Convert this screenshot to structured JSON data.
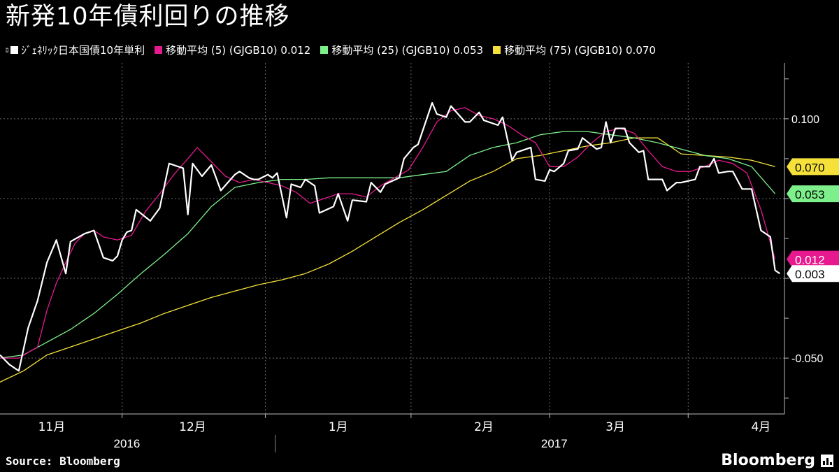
{
  "title": "新発10年債利回りの推移",
  "legend": {
    "generic_prefix": "ﾛ",
    "generic": "ｼﾞｪﾈﾘｯｸ日本国債10年単利",
    "ma5": "移動平均 (5) (GJGB10) 0.012",
    "ma25": "移動平均 (25) (GJGB10) 0.053",
    "ma75": "移動平均 (75) (GJGB10) 0.070"
  },
  "source": "Source:  Bloomberg",
  "brand": "Bloomberg",
  "colors": {
    "background": "#000000",
    "yield": "#ffffff",
    "ma5": "#e6198f",
    "ma25": "#7ef08b",
    "ma75": "#f5e13a",
    "grid": "#6a6a6a"
  },
  "chart_data": {
    "type": "line",
    "title": "新発10年債利回りの推移",
    "xlabel": "",
    "ylabel": "",
    "ylim": [
      -0.085,
      0.135
    ],
    "grid": true,
    "legend_position": "top",
    "y_ticks": [
      {
        "value": 0.1,
        "label": "0.100"
      },
      {
        "value": 0.05,
        "label": ""
      },
      {
        "value": 0.0,
        "label": ""
      },
      {
        "value": -0.05,
        "label": "-0.050"
      }
    ],
    "x_month_labels": [
      {
        "day": 11,
        "label": "11月"
      },
      {
        "day": 41,
        "label": "12月"
      },
      {
        "day": 72,
        "label": "1月"
      },
      {
        "day": 103,
        "label": "2月"
      },
      {
        "day": 131,
        "label": "3月"
      },
      {
        "day": 162,
        "label": "4月"
      }
    ],
    "x_year_labels": [
      {
        "day": 27,
        "label": "2016"
      },
      {
        "day": 118,
        "label": "2017"
      }
    ],
    "x_range_days": [
      0,
      167
    ],
    "x_start_date": "2016-10-21",
    "end_labels": [
      {
        "series": "ma75",
        "label": "0.070"
      },
      {
        "series": "ma25",
        "label": "0.053"
      },
      {
        "series": "ma5",
        "label": "0.012"
      },
      {
        "series": "yield",
        "label": "0.003"
      }
    ],
    "series": [
      {
        "name": "ｼﾞｪﾈﾘｯｸ日本国債10年単利",
        "key": "yield",
        "x": [
          0,
          2,
          4,
          6,
          8,
          10,
          12,
          14,
          15,
          18,
          19,
          20,
          22,
          24,
          25,
          26,
          27,
          28,
          29,
          32,
          34,
          36,
          39,
          40,
          41,
          43,
          45,
          46,
          47,
          50,
          51,
          53,
          54,
          55,
          57,
          58,
          59,
          61,
          62,
          64,
          65,
          67,
          68,
          71,
          72,
          74,
          75,
          78,
          79,
          81,
          82,
          85,
          86,
          88,
          89,
          92,
          93,
          95,
          96,
          99,
          100,
          102,
          103,
          106,
          107,
          109,
          110,
          113,
          114,
          116,
          117,
          118,
          120,
          121,
          123,
          124,
          127,
          128,
          129,
          130,
          131,
          133,
          134,
          136,
          137,
          138,
          141,
          142,
          144,
          145,
          148,
          149,
          151,
          152,
          153,
          155,
          156,
          158,
          160,
          162,
          164,
          165,
          166
        ],
        "y": [
          -0.048,
          -0.054,
          -0.058,
          -0.031,
          -0.014,
          0.01,
          0.024,
          0.003,
          0.023,
          0.028,
          0.029,
          0.03,
          0.013,
          0.011,
          0.014,
          0.024,
          0.029,
          0.03,
          0.043,
          0.036,
          0.044,
          0.072,
          0.069,
          0.04,
          0.072,
          0.064,
          0.071,
          0.063,
          0.055,
          0.065,
          0.067,
          0.063,
          0.062,
          0.062,
          0.065,
          0.063,
          0.066,
          0.038,
          0.059,
          0.057,
          0.062,
          0.058,
          0.041,
          0.045,
          0.053,
          0.036,
          0.049,
          0.048,
          0.06,
          0.054,
          0.059,
          0.063,
          0.075,
          0.082,
          0.084,
          0.11,
          0.103,
          0.101,
          0.108,
          0.098,
          0.098,
          0.104,
          0.099,
          0.096,
          0.101,
          0.074,
          0.079,
          0.082,
          0.062,
          0.061,
          0.068,
          0.067,
          0.072,
          0.08,
          0.081,
          0.088,
          0.081,
          0.082,
          0.098,
          0.085,
          0.094,
          0.094,
          0.085,
          0.079,
          0.08,
          0.062,
          0.062,
          0.055,
          0.06,
          0.06,
          0.062,
          0.07,
          0.07,
          0.075,
          0.066,
          0.067,
          0.067,
          0.056,
          0.056,
          0.03,
          0.026,
          0.005,
          0.003
        ]
      },
      {
        "name": "移動平均 (5) (GJGB10)",
        "key": "ma5",
        "x": [
          0,
          4,
          8,
          10,
          12,
          14,
          16,
          18,
          20,
          22,
          25,
          28,
          31,
          34,
          37,
          40,
          42,
          45,
          48,
          51,
          54,
          57,
          60,
          63,
          66,
          69,
          72,
          75,
          78,
          81,
          84,
          87,
          90,
          93,
          96,
          99,
          102,
          105,
          108,
          111,
          114,
          117,
          120,
          123,
          126,
          129,
          132,
          135,
          138,
          141,
          144,
          147,
          150,
          153,
          156,
          159,
          162,
          165
        ],
        "y": [
          -0.05,
          -0.05,
          -0.043,
          -0.02,
          -0.003,
          0.01,
          0.022,
          0.028,
          0.03,
          0.026,
          0.024,
          0.027,
          0.042,
          0.053,
          0.065,
          0.075,
          0.082,
          0.073,
          0.064,
          0.06,
          0.062,
          0.06,
          0.058,
          0.054,
          0.047,
          0.05,
          0.053,
          0.053,
          0.051,
          0.058,
          0.063,
          0.068,
          0.082,
          0.098,
          0.105,
          0.107,
          0.102,
          0.1,
          0.096,
          0.09,
          0.085,
          0.07,
          0.07,
          0.076,
          0.085,
          0.092,
          0.094,
          0.091,
          0.08,
          0.07,
          0.067,
          0.067,
          0.07,
          0.074,
          0.072,
          0.066,
          0.043,
          0.012
        ]
      },
      {
        "name": "移動平均 (25) (GJGB10)",
        "key": "ma25",
        "x": [
          0,
          5,
          10,
          15,
          20,
          25,
          30,
          35,
          40,
          45,
          50,
          55,
          60,
          65,
          70,
          75,
          80,
          85,
          90,
          95,
          100,
          105,
          110,
          115,
          120,
          125,
          130,
          135,
          140,
          145,
          150,
          155,
          160,
          165
        ],
        "y": [
          -0.05,
          -0.048,
          -0.04,
          -0.032,
          -0.022,
          -0.01,
          0.003,
          0.015,
          0.028,
          0.045,
          0.057,
          0.06,
          0.062,
          0.062,
          0.063,
          0.063,
          0.063,
          0.063,
          0.065,
          0.067,
          0.077,
          0.082,
          0.085,
          0.09,
          0.092,
          0.092,
          0.09,
          0.088,
          0.085,
          0.081,
          0.077,
          0.075,
          0.07,
          0.053
        ]
      },
      {
        "name": "移動平均 (75) (GJGB10)",
        "key": "ma75",
        "x": [
          0,
          5,
          10,
          15,
          20,
          25,
          30,
          35,
          40,
          45,
          50,
          55,
          60,
          65,
          70,
          75,
          80,
          85,
          90,
          95,
          100,
          105,
          110,
          115,
          120,
          125,
          130,
          135,
          140,
          145,
          150,
          155,
          160,
          165
        ],
        "y": [
          -0.065,
          -0.058,
          -0.048,
          -0.043,
          -0.038,
          -0.033,
          -0.028,
          -0.022,
          -0.017,
          -0.012,
          -0.008,
          -0.004,
          -0.001,
          0.003,
          0.009,
          0.017,
          0.026,
          0.035,
          0.043,
          0.052,
          0.061,
          0.067,
          0.075,
          0.077,
          0.08,
          0.083,
          0.085,
          0.088,
          0.088,
          0.078,
          0.077,
          0.076,
          0.074,
          0.07
        ]
      }
    ]
  }
}
